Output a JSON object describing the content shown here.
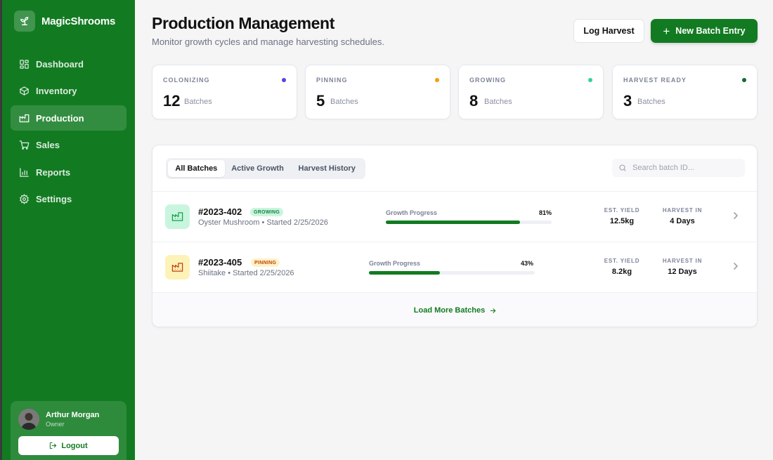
{
  "brand": {
    "name": "MagicShrooms",
    "logo_icon": "sprout-icon"
  },
  "colors": {
    "sidebar": "#127b22",
    "primary": "#127b22",
    "colonizing": "#4f46e5",
    "pinning": "#f59e0b",
    "growing": "#34d399",
    "harvest_ready": "#166534"
  },
  "sidebar": {
    "items": [
      {
        "label": "Dashboard",
        "icon": "grid-icon"
      },
      {
        "label": "Inventory",
        "icon": "box-icon"
      },
      {
        "label": "Production",
        "icon": "factory-icon",
        "active": true
      },
      {
        "label": "Sales",
        "icon": "cart-icon"
      },
      {
        "label": "Reports",
        "icon": "bar-chart-icon"
      },
      {
        "label": "Settings",
        "icon": "gear-icon"
      }
    ]
  },
  "user": {
    "name": "Arthur Morgan",
    "role": "Owner",
    "logout_label": "Logout"
  },
  "header": {
    "title": "Production Management",
    "subtitle": "Monitor growth cycles and manage harvesting schedules.",
    "log_harvest_label": "Log Harvest",
    "new_batch_label": "New Batch Entry"
  },
  "stats": [
    {
      "label": "COLONIZING",
      "value": "12",
      "unit": "Batches"
    },
    {
      "label": "PINNING",
      "value": "5",
      "unit": "Batches"
    },
    {
      "label": "GROWING",
      "value": "8",
      "unit": "Batches"
    },
    {
      "label": "HARVEST READY",
      "value": "3",
      "unit": "Batches"
    }
  ],
  "tabs": [
    {
      "label": "All Batches",
      "active": true
    },
    {
      "label": "Active Growth"
    },
    {
      "label": "Harvest History"
    }
  ],
  "search": {
    "placeholder": "Search batch ID..."
  },
  "batches": [
    {
      "id": "#2023-402",
      "status": "GROWING",
      "subtitle": "Oyster Mushroom • Started 2/25/2026",
      "progress_label": "Growth Progress",
      "progress_text": "81%",
      "progress": 0.81,
      "yield_label": "EST. YIELD",
      "yield": "12.5kg",
      "harvest_label": "HARVEST IN",
      "harvest": "4 Days"
    },
    {
      "id": "#2023-405",
      "status": "PINNING",
      "subtitle": "Shiitake • Started 2/25/2026",
      "progress_label": "Growth Progress",
      "progress_text": "43%",
      "progress": 0.43,
      "yield_label": "EST. YIELD",
      "yield": "8.2kg",
      "harvest_label": "HARVEST IN",
      "harvest": "12 Days"
    }
  ],
  "load_more_label": "Load More Batches"
}
